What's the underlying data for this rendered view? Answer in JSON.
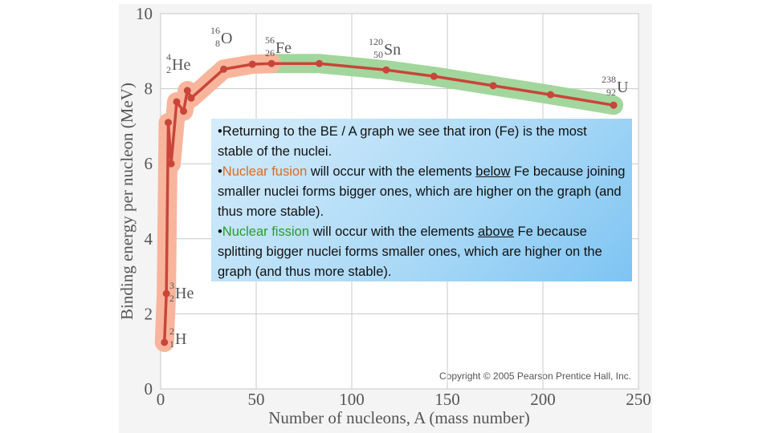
{
  "chart_data": {
    "type": "line",
    "xlabel": "Number of nucleons, A (mass number)",
    "ylabel": "Binding energy per nucleon (MeV)",
    "x": [
      2,
      3,
      4,
      5.5,
      8.4,
      12,
      14,
      16,
      33,
      48,
      58,
      83,
      118,
      143,
      174,
      204,
      237
    ],
    "series": [
      {
        "color": "#c9453a",
        "values": [
          1.24,
          2.54,
          7.1,
          6.0,
          7.65,
          7.4,
          7.95,
          7.75,
          8.52,
          8.65,
          8.67,
          8.67,
          8.5,
          8.33,
          8.08,
          7.84,
          7.56
        ]
      }
    ],
    "fusion_color": "#f8b59c",
    "fission_color": "#a3d69c",
    "xlim": [
      0,
      250
    ],
    "xticks": [
      0,
      50,
      100,
      150,
      200,
      250
    ],
    "ylim": [
      0,
      10
    ],
    "yticks": [
      0,
      2,
      4,
      6,
      8,
      10
    ],
    "grid": true,
    "annotations": [
      {
        "mass": "2",
        "atomic": "1",
        "symbol": "H"
      },
      {
        "mass": "3",
        "atomic": "2",
        "symbol": "He"
      },
      {
        "mass": "4",
        "atomic": "2",
        "symbol": "He"
      },
      {
        "mass": "16",
        "atomic": "8",
        "symbol": "O"
      },
      {
        "mass": "56",
        "atomic": "26",
        "symbol": "Fe"
      },
      {
        "mass": "120",
        "atomic": "50",
        "symbol": "Sn"
      },
      {
        "mass": "238",
        "atomic": "92",
        "symbol": "U"
      }
    ],
    "credit": "Copyright © 2005 Pearson Prentice Hall, Inc."
  },
  "textbox": {
    "bullets": [
      [
        "•Returning to the BE / A graph we see that iron (Fe) is the most stable of the nuclei."
      ],
      [
        "•",
        "Nuclear fusion",
        " will occur with the elements ",
        "below",
        " Fe because joining smaller nuclei forms bigger ones, which are higher on the graph (and thus more stable)."
      ],
      [
        "•",
        "Nuclear fission",
        " will occur with the elements ",
        "above",
        " Fe because splitting bigger nuclei forms smaller ones, which are higher on the graph (and thus more stable)."
      ]
    ]
  }
}
